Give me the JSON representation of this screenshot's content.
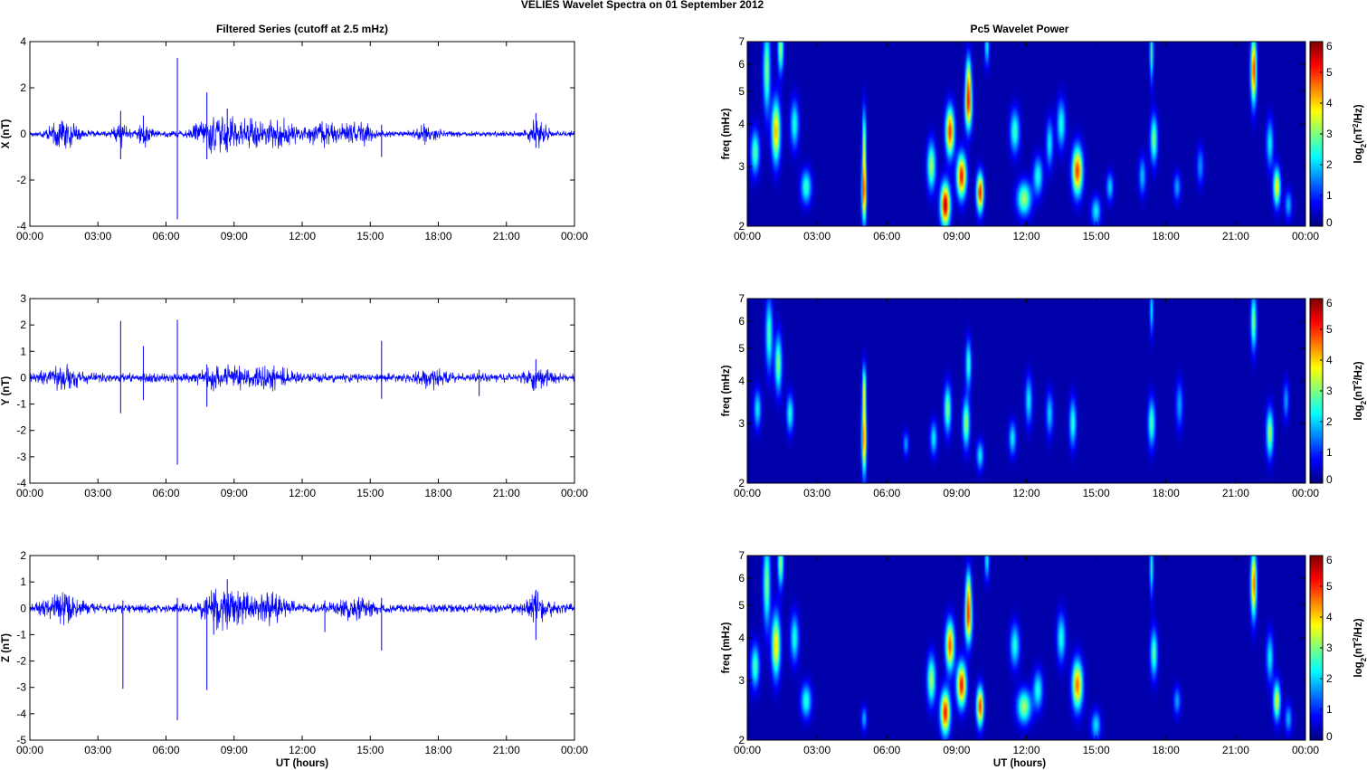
{
  "figure": {
    "suptitle": "VELIES Wavelet Spectra on 01 September 2012",
    "left_title": "Filtered Series (cutoff at 2.5 mHz)",
    "right_title": "Pc5 Wavelet Power",
    "xlabel": "UT (hours)",
    "x_ticks": [
      "00:00",
      "03:00",
      "06:00",
      "09:00",
      "12:00",
      "15:00",
      "18:00",
      "21:00",
      "00:00"
    ],
    "colorbar_label_prefix": "log",
    "colorbar_label_sub": "2",
    "colorbar_label_mid": "(nT",
    "colorbar_label_sup": "2",
    "colorbar_label_suffix": "/Hz)",
    "colors": {
      "trace": "#0000ff",
      "background_field": "#00008f"
    }
  },
  "chart_data": [
    {
      "type": "line",
      "title": "Filtered Series (cutoff at 2.5 mHz)",
      "ylabel": "X (nT)",
      "xlabel": "",
      "x_range_hours": [
        0,
        24
      ],
      "ylim": [
        -4,
        4
      ],
      "y_ticks": [
        "4",
        "2",
        "0",
        "-2",
        "-4"
      ],
      "y_tick_values": [
        4,
        2,
        0,
        -2,
        -4
      ],
      "base_amplitude": 0.15,
      "bursts": [
        {
          "t": 1.5,
          "amp": 0.7,
          "width": 0.6
        },
        {
          "t": 4.0,
          "amp": 0.5,
          "width": 0.3
        },
        {
          "t": 5.0,
          "amp": 0.6,
          "width": 0.3
        },
        {
          "t": 8.2,
          "amp": 0.9,
          "width": 0.9
        },
        {
          "t": 9.6,
          "amp": 0.6,
          "width": 0.7
        },
        {
          "t": 11.0,
          "amp": 0.6,
          "width": 0.8
        },
        {
          "t": 13.0,
          "amp": 0.5,
          "width": 0.8
        },
        {
          "t": 14.5,
          "amp": 0.5,
          "width": 0.6
        },
        {
          "t": 17.5,
          "amp": 0.4,
          "width": 0.5
        },
        {
          "t": 22.4,
          "amp": 0.7,
          "width": 0.4
        }
      ],
      "spikes": [
        {
          "t": 4.0,
          "hi": 1.0,
          "lo": -1.1
        },
        {
          "t": 5.0,
          "hi": 0.8,
          "lo": -0.4
        },
        {
          "t": 6.5,
          "hi": 3.3,
          "lo": -3.7
        },
        {
          "t": 7.8,
          "hi": 1.8,
          "lo": -1.1
        },
        {
          "t": 8.7,
          "hi": 1.1,
          "lo": -0.8
        },
        {
          "t": 15.5,
          "hi": 0.4,
          "lo": -1.0
        },
        {
          "t": 22.3,
          "hi": 0.9,
          "lo": -0.6
        }
      ]
    },
    {
      "type": "line",
      "title": "",
      "ylabel": "Y (nT)",
      "xlabel": "",
      "x_range_hours": [
        0,
        24
      ],
      "ylim": [
        -4,
        3
      ],
      "y_ticks": [
        "3",
        "2",
        "1",
        "0",
        "-1",
        "-2",
        "-3",
        "-4"
      ],
      "y_tick_values": [
        3,
        2,
        1,
        0,
        -1,
        -2,
        -3,
        -4
      ],
      "base_amplitude": 0.2,
      "bursts": [
        {
          "t": 1.5,
          "amp": 0.4,
          "width": 0.8
        },
        {
          "t": 8.5,
          "amp": 0.4,
          "width": 1.0
        },
        {
          "t": 10.5,
          "amp": 0.35,
          "width": 1.0
        },
        {
          "t": 17.7,
          "amp": 0.3,
          "width": 0.6
        },
        {
          "t": 22.4,
          "amp": 0.4,
          "width": 0.5
        }
      ],
      "spikes": [
        {
          "t": 4.0,
          "hi": 2.15,
          "lo": -1.35
        },
        {
          "t": 5.0,
          "hi": 1.2,
          "lo": -0.85
        },
        {
          "t": 6.5,
          "hi": 2.2,
          "lo": -3.3
        },
        {
          "t": 7.8,
          "hi": 0.5,
          "lo": -1.1
        },
        {
          "t": 15.5,
          "hi": 1.4,
          "lo": -0.8
        },
        {
          "t": 19.8,
          "hi": 0.3,
          "lo": -0.7
        },
        {
          "t": 22.3,
          "hi": 0.7,
          "lo": -0.4
        }
      ]
    },
    {
      "type": "line",
      "title": "",
      "ylabel": "Z (nT)",
      "xlabel": "UT (hours)",
      "x_range_hours": [
        0,
        24
      ],
      "ylim": [
        -5,
        2
      ],
      "y_ticks": [
        "2",
        "1",
        "0",
        "-1",
        "-2",
        "-3",
        "-4",
        "-5"
      ],
      "y_tick_values": [
        2,
        1,
        0,
        -1,
        -2,
        -3,
        -4,
        -5
      ],
      "base_amplitude": 0.2,
      "bursts": [
        {
          "t": 1.5,
          "amp": 0.5,
          "width": 0.8
        },
        {
          "t": 8.6,
          "amp": 0.8,
          "width": 1.0
        },
        {
          "t": 10.5,
          "amp": 0.5,
          "width": 0.9
        },
        {
          "t": 14.3,
          "amp": 0.4,
          "width": 0.8
        },
        {
          "t": 22.4,
          "amp": 0.6,
          "width": 0.5
        }
      ],
      "spikes": [
        {
          "t": 4.1,
          "hi": 0.3,
          "lo": -3.05
        },
        {
          "t": 6.5,
          "hi": 0.4,
          "lo": -4.25
        },
        {
          "t": 7.8,
          "hi": 0.3,
          "lo": -3.1
        },
        {
          "t": 8.1,
          "hi": 0.6,
          "lo": -1.0
        },
        {
          "t": 8.7,
          "hi": 1.1,
          "lo": -0.6
        },
        {
          "t": 13.0,
          "hi": 0.3,
          "lo": -0.9
        },
        {
          "t": 15.5,
          "hi": 0.4,
          "lo": -1.6
        },
        {
          "t": 22.3,
          "hi": 0.7,
          "lo": -1.2
        }
      ]
    },
    {
      "type": "heatmap",
      "title": "Pc5 Wavelet Power",
      "ylabel": "freq (mHz)",
      "xlabel": "",
      "x_range_hours": [
        0,
        24
      ],
      "y_scale": "log",
      "ylim_mhz": [
        2,
        7
      ],
      "y_ticks": [
        "7",
        "6",
        "5",
        "4",
        "3",
        "2"
      ],
      "y_tick_values": [
        7,
        6,
        5,
        4,
        3,
        2
      ],
      "clim": [
        0,
        6
      ],
      "colorbar_ticks": [
        "6",
        "5",
        "4",
        "3",
        "2",
        "1",
        "0"
      ],
      "colormap": "jet",
      "blobs": [
        {
          "t": 0.3,
          "f": 3.3,
          "v": 2.6,
          "wt": 0.18,
          "wf": 0.09
        },
        {
          "t": 0.8,
          "f": 5.8,
          "v": 2.8,
          "wt": 0.15,
          "wf": 0.18
        },
        {
          "t": 1.2,
          "f": 3.8,
          "v": 4.0,
          "wt": 0.18,
          "wf": 0.13
        },
        {
          "t": 1.4,
          "f": 6.7,
          "v": 3.0,
          "wt": 0.12,
          "wf": 0.1
        },
        {
          "t": 2.0,
          "f": 4.0,
          "v": 2.2,
          "wt": 0.18,
          "wf": 0.1
        },
        {
          "t": 2.5,
          "f": 2.6,
          "v": 2.4,
          "wt": 0.22,
          "wf": 0.07
        },
        {
          "t": 5.0,
          "f": 2.5,
          "v": 4.5,
          "wt": 0.1,
          "wf": 0.13
        },
        {
          "t": 5.0,
          "f": 3.5,
          "v": 3.0,
          "wt": 0.08,
          "wf": 0.15
        },
        {
          "t": 7.9,
          "f": 3.0,
          "v": 3.0,
          "wt": 0.18,
          "wf": 0.1
        },
        {
          "t": 8.5,
          "f": 2.3,
          "v": 5.5,
          "wt": 0.2,
          "wf": 0.09
        },
        {
          "t": 8.7,
          "f": 3.8,
          "v": 4.8,
          "wt": 0.18,
          "wf": 0.1
        },
        {
          "t": 9.2,
          "f": 2.8,
          "v": 5.0,
          "wt": 0.2,
          "wf": 0.09
        },
        {
          "t": 9.5,
          "f": 4.5,
          "v": 4.2,
          "wt": 0.15,
          "wf": 0.1
        },
        {
          "t": 9.5,
          "f": 5.5,
          "v": 3.0,
          "wt": 0.12,
          "wf": 0.1
        },
        {
          "t": 10.0,
          "f": 2.5,
          "v": 5.0,
          "wt": 0.15,
          "wf": 0.08
        },
        {
          "t": 10.3,
          "f": 6.8,
          "v": 2.0,
          "wt": 0.1,
          "wf": 0.08
        },
        {
          "t": 11.5,
          "f": 3.8,
          "v": 2.4,
          "wt": 0.2,
          "wf": 0.09
        },
        {
          "t": 11.9,
          "f": 2.4,
          "v": 3.0,
          "wt": 0.3,
          "wf": 0.07
        },
        {
          "t": 12.5,
          "f": 2.8,
          "v": 2.2,
          "wt": 0.2,
          "wf": 0.08
        },
        {
          "t": 13.0,
          "f": 3.5,
          "v": 2.0,
          "wt": 0.15,
          "wf": 0.1
        },
        {
          "t": 13.5,
          "f": 4.0,
          "v": 2.2,
          "wt": 0.18,
          "wf": 0.1
        },
        {
          "t": 14.2,
          "f": 2.9,
          "v": 4.7,
          "wt": 0.22,
          "wf": 0.1
        },
        {
          "t": 15.0,
          "f": 2.2,
          "v": 2.0,
          "wt": 0.2,
          "wf": 0.06
        },
        {
          "t": 15.6,
          "f": 2.6,
          "v": 1.8,
          "wt": 0.15,
          "wf": 0.06
        },
        {
          "t": 17.0,
          "f": 2.8,
          "v": 1.7,
          "wt": 0.15,
          "wf": 0.08
        },
        {
          "t": 17.5,
          "f": 3.6,
          "v": 2.8,
          "wt": 0.15,
          "wf": 0.1
        },
        {
          "t": 17.4,
          "f": 6.5,
          "v": 2.5,
          "wt": 0.08,
          "wf": 0.12
        },
        {
          "t": 18.5,
          "f": 2.6,
          "v": 1.5,
          "wt": 0.15,
          "wf": 0.06
        },
        {
          "t": 19.5,
          "f": 3.0,
          "v": 1.4,
          "wt": 0.15,
          "wf": 0.08
        },
        {
          "t": 21.8,
          "f": 5.8,
          "v": 4.8,
          "wt": 0.12,
          "wf": 0.14
        },
        {
          "t": 22.5,
          "f": 3.5,
          "v": 2.0,
          "wt": 0.15,
          "wf": 0.1
        },
        {
          "t": 22.8,
          "f": 2.6,
          "v": 3.6,
          "wt": 0.15,
          "wf": 0.08
        },
        {
          "t": 23.3,
          "f": 2.3,
          "v": 1.6,
          "wt": 0.15,
          "wf": 0.06
        }
      ]
    },
    {
      "type": "heatmap",
      "title": "",
      "ylabel": "freq (mHz)",
      "xlabel": "",
      "x_range_hours": [
        0,
        24
      ],
      "y_scale": "log",
      "ylim_mhz": [
        2,
        7
      ],
      "y_ticks": [
        "7",
        "6",
        "5",
        "4",
        "3",
        "2"
      ],
      "y_tick_values": [
        7,
        6,
        5,
        4,
        3,
        2
      ],
      "clim": [
        0,
        6
      ],
      "colorbar_ticks": [
        "6",
        "5",
        "4",
        "3",
        "2",
        "1",
        "0"
      ],
      "colormap": "jet",
      "blobs": [
        {
          "t": 0.4,
          "f": 3.3,
          "v": 2.0,
          "wt": 0.15,
          "wf": 0.08
        },
        {
          "t": 0.9,
          "f": 5.5,
          "v": 2.5,
          "wt": 0.15,
          "wf": 0.15
        },
        {
          "t": 1.3,
          "f": 4.5,
          "v": 2.8,
          "wt": 0.15,
          "wf": 0.12
        },
        {
          "t": 1.8,
          "f": 3.2,
          "v": 2.2,
          "wt": 0.15,
          "wf": 0.08
        },
        {
          "t": 5.0,
          "f": 2.7,
          "v": 4.5,
          "wt": 0.1,
          "wf": 0.15
        },
        {
          "t": 5.0,
          "f": 3.8,
          "v": 3.0,
          "wt": 0.08,
          "wf": 0.1
        },
        {
          "t": 6.8,
          "f": 2.6,
          "v": 1.5,
          "wt": 0.12,
          "wf": 0.05
        },
        {
          "t": 8.0,
          "f": 2.7,
          "v": 2.0,
          "wt": 0.15,
          "wf": 0.07
        },
        {
          "t": 8.6,
          "f": 3.3,
          "v": 2.8,
          "wt": 0.15,
          "wf": 0.1
        },
        {
          "t": 9.4,
          "f": 3.0,
          "v": 3.0,
          "wt": 0.15,
          "wf": 0.1
        },
        {
          "t": 9.5,
          "f": 4.5,
          "v": 2.4,
          "wt": 0.12,
          "wf": 0.1
        },
        {
          "t": 10.0,
          "f": 2.4,
          "v": 2.0,
          "wt": 0.15,
          "wf": 0.06
        },
        {
          "t": 11.4,
          "f": 2.7,
          "v": 2.0,
          "wt": 0.15,
          "wf": 0.07
        },
        {
          "t": 12.1,
          "f": 3.5,
          "v": 2.0,
          "wt": 0.15,
          "wf": 0.1
        },
        {
          "t": 13.0,
          "f": 3.2,
          "v": 1.8,
          "wt": 0.15,
          "wf": 0.09
        },
        {
          "t": 14.0,
          "f": 3.0,
          "v": 2.3,
          "wt": 0.15,
          "wf": 0.1
        },
        {
          "t": 17.4,
          "f": 3.0,
          "v": 2.5,
          "wt": 0.15,
          "wf": 0.1
        },
        {
          "t": 17.4,
          "f": 6.5,
          "v": 2.0,
          "wt": 0.08,
          "wf": 0.1
        },
        {
          "t": 18.6,
          "f": 3.4,
          "v": 1.5,
          "wt": 0.15,
          "wf": 0.1
        },
        {
          "t": 21.8,
          "f": 6.0,
          "v": 2.8,
          "wt": 0.12,
          "wf": 0.12
        },
        {
          "t": 22.5,
          "f": 2.8,
          "v": 3.0,
          "wt": 0.15,
          "wf": 0.1
        },
        {
          "t": 23.2,
          "f": 3.5,
          "v": 1.5,
          "wt": 0.12,
          "wf": 0.08
        }
      ]
    },
    {
      "type": "heatmap",
      "title": "",
      "ylabel": "freq (mHz)",
      "xlabel": "UT (hours)",
      "x_range_hours": [
        0,
        24
      ],
      "y_scale": "log",
      "ylim_mhz": [
        2,
        7
      ],
      "y_ticks": [
        "7",
        "6",
        "5",
        "4",
        "3",
        "2"
      ],
      "y_tick_values": [
        7,
        6,
        5,
        4,
        3,
        2
      ],
      "clim": [
        0,
        6
      ],
      "colorbar_ticks": [
        "6",
        "5",
        "4",
        "3",
        "2",
        "1",
        "0"
      ],
      "colormap": "jet",
      "blobs": [
        {
          "t": 0.3,
          "f": 3.3,
          "v": 2.5,
          "wt": 0.18,
          "wf": 0.09
        },
        {
          "t": 0.8,
          "f": 5.8,
          "v": 2.8,
          "wt": 0.15,
          "wf": 0.18
        },
        {
          "t": 1.2,
          "f": 3.8,
          "v": 3.8,
          "wt": 0.18,
          "wf": 0.13
        },
        {
          "t": 1.4,
          "f": 6.7,
          "v": 3.0,
          "wt": 0.12,
          "wf": 0.1
        },
        {
          "t": 2.0,
          "f": 4.0,
          "v": 2.2,
          "wt": 0.18,
          "wf": 0.1
        },
        {
          "t": 2.5,
          "f": 2.6,
          "v": 2.3,
          "wt": 0.22,
          "wf": 0.07
        },
        {
          "t": 5.0,
          "f": 2.3,
          "v": 1.6,
          "wt": 0.12,
          "wf": 0.05
        },
        {
          "t": 7.9,
          "f": 3.0,
          "v": 3.0,
          "wt": 0.18,
          "wf": 0.1
        },
        {
          "t": 8.5,
          "f": 2.4,
          "v": 5.0,
          "wt": 0.2,
          "wf": 0.09
        },
        {
          "t": 8.7,
          "f": 3.8,
          "v": 4.6,
          "wt": 0.18,
          "wf": 0.1
        },
        {
          "t": 9.2,
          "f": 2.9,
          "v": 5.0,
          "wt": 0.2,
          "wf": 0.09
        },
        {
          "t": 9.5,
          "f": 4.5,
          "v": 4.0,
          "wt": 0.15,
          "wf": 0.1
        },
        {
          "t": 9.5,
          "f": 5.5,
          "v": 3.0,
          "wt": 0.12,
          "wf": 0.1
        },
        {
          "t": 10.0,
          "f": 2.5,
          "v": 4.8,
          "wt": 0.15,
          "wf": 0.08
        },
        {
          "t": 10.3,
          "f": 6.8,
          "v": 2.0,
          "wt": 0.1,
          "wf": 0.08
        },
        {
          "t": 11.5,
          "f": 3.8,
          "v": 2.2,
          "wt": 0.2,
          "wf": 0.09
        },
        {
          "t": 11.9,
          "f": 2.5,
          "v": 3.0,
          "wt": 0.3,
          "wf": 0.07
        },
        {
          "t": 12.5,
          "f": 2.8,
          "v": 2.2,
          "wt": 0.2,
          "wf": 0.08
        },
        {
          "t": 13.5,
          "f": 4.0,
          "v": 2.2,
          "wt": 0.18,
          "wf": 0.1
        },
        {
          "t": 14.2,
          "f": 2.9,
          "v": 4.4,
          "wt": 0.22,
          "wf": 0.1
        },
        {
          "t": 15.0,
          "f": 2.2,
          "v": 1.9,
          "wt": 0.2,
          "wf": 0.06
        },
        {
          "t": 17.5,
          "f": 3.6,
          "v": 2.6,
          "wt": 0.15,
          "wf": 0.1
        },
        {
          "t": 17.4,
          "f": 6.5,
          "v": 2.3,
          "wt": 0.08,
          "wf": 0.12
        },
        {
          "t": 18.5,
          "f": 2.6,
          "v": 1.5,
          "wt": 0.15,
          "wf": 0.06
        },
        {
          "t": 21.8,
          "f": 5.8,
          "v": 4.5,
          "wt": 0.12,
          "wf": 0.14
        },
        {
          "t": 22.5,
          "f": 3.5,
          "v": 2.0,
          "wt": 0.15,
          "wf": 0.1
        },
        {
          "t": 22.8,
          "f": 2.6,
          "v": 3.4,
          "wt": 0.15,
          "wf": 0.08
        },
        {
          "t": 23.3,
          "f": 2.3,
          "v": 1.6,
          "wt": 0.15,
          "wf": 0.06
        }
      ]
    }
  ]
}
